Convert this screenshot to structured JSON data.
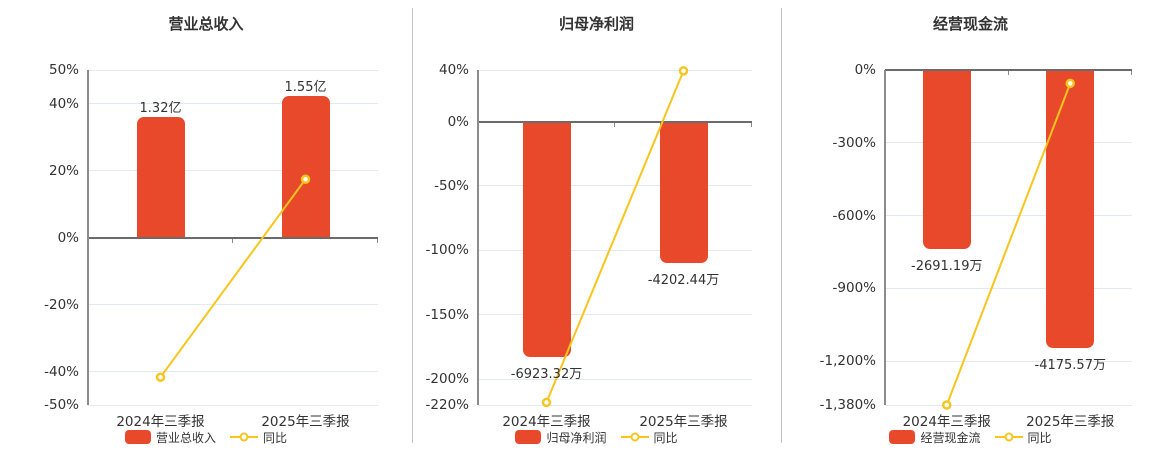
{
  "colors": {
    "bar": "#e7492a",
    "line": "#f7c51e",
    "grid": "#e3e9f3",
    "zero_axis": "#6b6b6b",
    "axis": "#8c8c8c",
    "text": "#333333",
    "separator": "#c2c2c2"
  },
  "chart_data": [
    {
      "type": "bar",
      "title": "营业总收入",
      "categories": [
        "2024年三季报",
        "2025年三季报"
      ],
      "bars": {
        "name": "营业总收入",
        "labels": [
          "1.32亿",
          "1.55亿"
        ],
        "values": [
          1.32,
          1.55
        ],
        "unit": "亿",
        "plotted_pct": [
          36,
          42.3
        ]
      },
      "line": {
        "name": "同比",
        "values_pct": [
          -41.7,
          17.4
        ]
      },
      "ylim": [
        -50,
        50
      ],
      "y_ticks": [
        {
          "label": "50%",
          "value": 50
        },
        {
          "label": "40%",
          "value": 40
        },
        {
          "label": "20%",
          "value": 20
        },
        {
          "label": "0%",
          "value": 0
        },
        {
          "label": "-20%",
          "value": -20
        },
        {
          "label": "-40%",
          "value": -40
        },
        {
          "label": "-50%",
          "value": -50
        }
      ],
      "legend": [
        "营业总收入",
        "同比"
      ]
    },
    {
      "type": "bar",
      "title": "归母净利润",
      "categories": [
        "2024年三季报",
        "2025年三季报"
      ],
      "bars": {
        "name": "归母净利润",
        "labels": [
          "-6923.32万",
          "-4202.44万"
        ],
        "values": [
          -6923.32,
          -4202.44
        ],
        "unit": "万",
        "plotted_pct": [
          -183,
          -110
        ]
      },
      "line": {
        "name": "同比",
        "values_pct": [
          -218,
          39.3
        ]
      },
      "ylim": [
        -220,
        40
      ],
      "y_ticks": [
        {
          "label": "40%",
          "value": 40
        },
        {
          "label": "0%",
          "value": 0
        },
        {
          "label": "-50%",
          "value": -50
        },
        {
          "label": "-100%",
          "value": -100
        },
        {
          "label": "-150%",
          "value": -150
        },
        {
          "label": "-200%",
          "value": -200
        },
        {
          "label": "-220%",
          "value": -220
        }
      ],
      "legend": [
        "归母净利润",
        "同比"
      ]
    },
    {
      "type": "bar",
      "title": "经营现金流",
      "categories": [
        "2024年三季报",
        "2025年三季报"
      ],
      "bars": {
        "name": "经营现金流",
        "labels": [
          "-2691.19万",
          "-4175.57万"
        ],
        "values": [
          -2691.19,
          -4175.57
        ],
        "unit": "万",
        "plotted_pct": [
          -737,
          -1144
        ]
      },
      "line": {
        "name": "同比",
        "values_pct": [
          -1380,
          -55.2
        ]
      },
      "ylim": [
        -1380,
        0
      ],
      "y_ticks": [
        {
          "label": "0%",
          "value": 0
        },
        {
          "label": "-300%",
          "value": -300
        },
        {
          "label": "-600%",
          "value": -600
        },
        {
          "label": "-900%",
          "value": -900
        },
        {
          "label": "-1,200%",
          "value": -1200
        },
        {
          "label": "-1,380%",
          "value": -1380
        }
      ],
      "legend": [
        "经营现金流",
        "同比"
      ]
    }
  ]
}
